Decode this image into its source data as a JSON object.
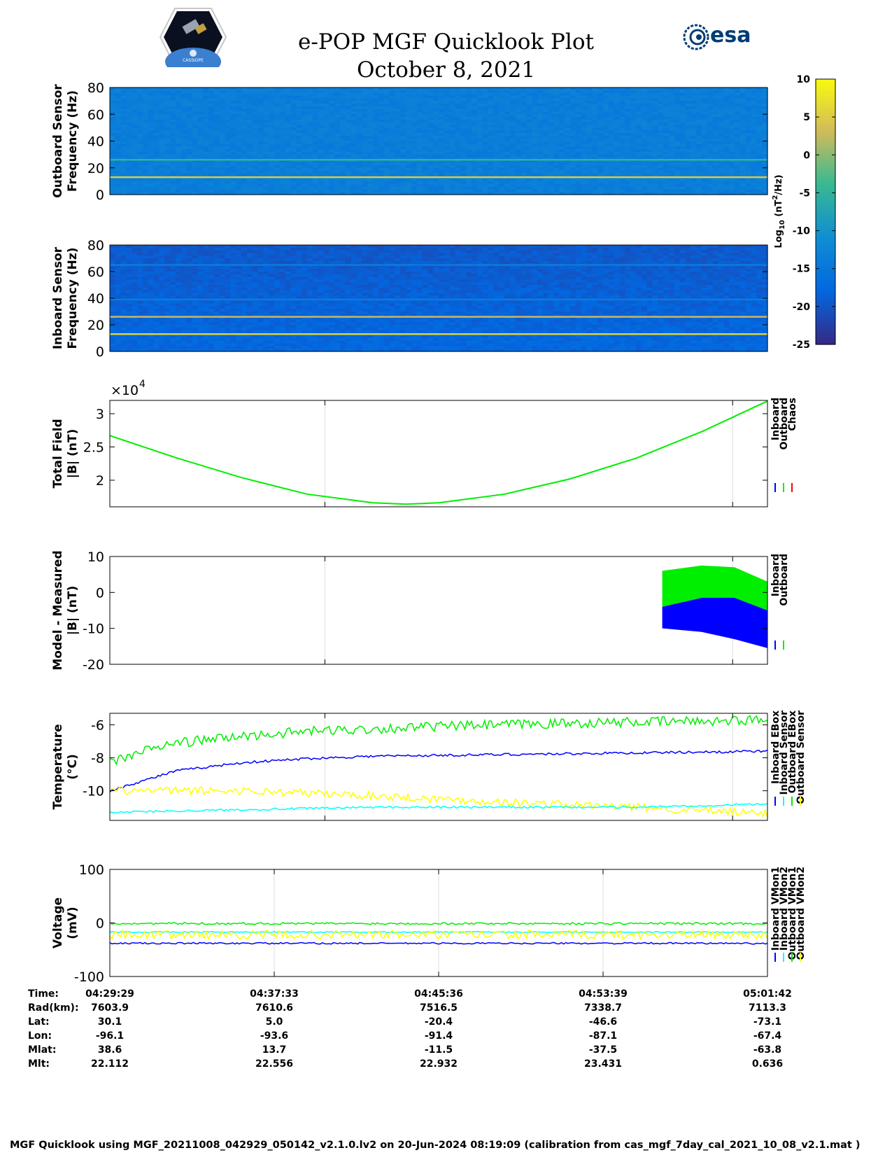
{
  "header": {
    "title": "e-POP MGF Quicklook Plot",
    "date": "October 8, 2021",
    "logo_left_text": "CASSIOPE",
    "logo_right_text": "esa"
  },
  "colorbar": {
    "label_prefix": "Log",
    "label_sub": "10",
    "label_mid": " (nT",
    "label_sup": "2",
    "label_suffix": "/Hz)",
    "ticks": [
      10,
      5,
      0,
      -5,
      -10,
      -15,
      -20,
      -25
    ],
    "range": [
      -25,
      10
    ],
    "colormap": "parula"
  },
  "chart_data": [
    {
      "type": "heatmap",
      "ylabel_line1": "Outboard Sensor",
      "ylabel_line2": "Frequency (Hz)",
      "yticks": [
        0,
        20,
        40,
        60,
        80
      ],
      "ylim": [
        0,
        80
      ],
      "background_level": -14,
      "lines": [
        {
          "freq": 13,
          "level": 5
        },
        {
          "freq": 26,
          "level": -5
        }
      ]
    },
    {
      "type": "heatmap",
      "ylabel_line1": "Inboard Sensor",
      "ylabel_line2": "Frequency (Hz)",
      "yticks": [
        0,
        20,
        40,
        60,
        80
      ],
      "ylim": [
        0,
        80
      ],
      "background_level": -19,
      "lines": [
        {
          "freq": 13,
          "level": 6
        },
        {
          "freq": 26,
          "level": 3
        },
        {
          "freq": 39,
          "level": -14
        },
        {
          "freq": 65,
          "level": -14
        }
      ]
    },
    {
      "type": "line",
      "ylabel_line1": "Total Field",
      "ylabel_line2": "|B| (nT)",
      "yticks": [
        2,
        2.5,
        3
      ],
      "ylim": [
        1.6,
        3.2
      ],
      "exponent_base": "×10",
      "exponent_power": "4",
      "legend": [
        "Inboard",
        "Outboard",
        "Chaos"
      ],
      "legend_colors": [
        "#0000ff",
        "#00ee00",
        "#ff0000"
      ],
      "series": [
        {
          "name": "Outboard",
          "x": [
            0,
            0.1,
            0.2,
            0.3,
            0.4,
            0.45,
            0.5,
            0.6,
            0.7,
            0.8,
            0.9,
            1.0
          ],
          "values": [
            2.67,
            2.34,
            2.04,
            1.79,
            1.66,
            1.64,
            1.66,
            1.79,
            2.02,
            2.33,
            2.73,
            3.19
          ]
        }
      ]
    },
    {
      "type": "area",
      "ylabel_line1": "Model - Measured",
      "ylabel_line2": "|B| (nT)",
      "yticks": [
        -20,
        -10,
        0,
        10
      ],
      "ylim": [
        -20,
        10
      ],
      "legend": [
        "Inboard",
        "Outboard"
      ],
      "legend_colors": [
        "#0000ff",
        "#00ee00"
      ],
      "series": [
        {
          "name": "Outboard",
          "x": [
            0.84,
            0.9,
            0.95,
            1.0
          ],
          "upper": [
            6,
            7.5,
            7.0,
            3
          ],
          "lower": [
            -4,
            -1.5,
            -1.5,
            -5
          ]
        },
        {
          "name": "Inboard",
          "x": [
            0.84,
            0.9,
            0.95,
            1.0
          ],
          "upper": [
            -4,
            -1.5,
            -1.5,
            -5
          ],
          "lower": [
            -10,
            -11,
            -13,
            -15.5
          ]
        }
      ]
    },
    {
      "type": "line",
      "ylabel_line1": "Temperature",
      "ylabel_line2": "(°C)",
      "yticks": [
        -10,
        -8,
        -6
      ],
      "ylim": [
        -11.8,
        -5.3
      ],
      "legend": [
        "Inboard EBox",
        "Inboard Sensor",
        "Outboard EBox",
        "Outboard Sensor"
      ],
      "legend_colors": [
        "#0000ff",
        "#00ffff",
        "#00ee00",
        "#ffff00"
      ],
      "series": [
        {
          "name": "Outboard EBox",
          "x": [
            0,
            0.05,
            0.1,
            0.2,
            0.3,
            0.5,
            0.7,
            0.85,
            1.0
          ],
          "values": [
            -8.3,
            -7.6,
            -7.1,
            -6.7,
            -6.4,
            -6.1,
            -5.9,
            -5.8,
            -5.7
          ]
        },
        {
          "name": "Inboard EBox",
          "x": [
            0,
            0.05,
            0.1,
            0.2,
            0.3,
            0.4,
            0.5,
            0.7,
            0.9,
            1.0
          ],
          "values": [
            -10.0,
            -9.4,
            -8.8,
            -8.3,
            -8.05,
            -7.9,
            -7.85,
            -7.75,
            -7.65,
            -7.6
          ]
        },
        {
          "name": "Outboard Sensor",
          "x": [
            0,
            0.2,
            0.4,
            0.6,
            0.8,
            1.0
          ],
          "values": [
            -10.0,
            -10.0,
            -10.3,
            -10.7,
            -11.0,
            -11.4
          ]
        },
        {
          "name": "Inboard Sensor",
          "x": [
            0,
            0.4,
            0.6,
            0.8,
            1.0
          ],
          "values": [
            -11.3,
            -11.0,
            -11.0,
            -11.0,
            -10.8
          ]
        }
      ]
    },
    {
      "type": "line",
      "ylabel_line1": "Voltage",
      "ylabel_line2": "(mV)",
      "yticks": [
        -100,
        0,
        100
      ],
      "ylim": [
        -100,
        100
      ],
      "legend": [
        "Inboard VMon1",
        "Inboard VMon2",
        "Outboard VMon1",
        "Outboard VMon2"
      ],
      "legend_colors": [
        "#0000ff",
        "#00ffff",
        "#00ee00",
        "#ffff00"
      ],
      "series": [
        {
          "name": "Outboard VMon1",
          "x": [
            0,
            1
          ],
          "values": [
            -1,
            -1
          ]
        },
        {
          "name": "Inboard VMon2",
          "x": [
            0,
            1
          ],
          "values": [
            -17,
            -17
          ]
        },
        {
          "name": "Outboard VMon2",
          "x": [
            0,
            1
          ],
          "values": [
            -22,
            -22
          ]
        },
        {
          "name": "Inboard VMon1",
          "x": [
            0,
            1
          ],
          "values": [
            -38,
            -38
          ]
        }
      ]
    }
  ],
  "timetable": {
    "labels": [
      "Time:",
      "Rad(km):",
      "Lat:",
      "Lon:",
      "Mlat:",
      "Mlt:"
    ],
    "columns": [
      [
        "04:29:29",
        "7603.9",
        "30.1",
        "-96.1",
        "38.6",
        "22.112"
      ],
      [
        "04:37:33",
        "7610.6",
        "5.0",
        "-93.6",
        "13.7",
        "22.556"
      ],
      [
        "04:45:36",
        "7516.5",
        "-20.4",
        "-91.4",
        "-11.5",
        "22.932"
      ],
      [
        "04:53:39",
        "7338.7",
        "-46.6",
        "-87.1",
        "-37.5",
        "23.431"
      ],
      [
        "05:01:42",
        "7113.3",
        "-73.1",
        "-67.4",
        "-63.8",
        "0.636"
      ]
    ]
  },
  "footer": "MGF Quicklook using MGF_20211008_042929_050142_v2.1.0.lv2 on 20-Jun-2024 08:19:09 (calibration from cas_mgf_7day_cal_2021_10_08_v2.1.mat )"
}
